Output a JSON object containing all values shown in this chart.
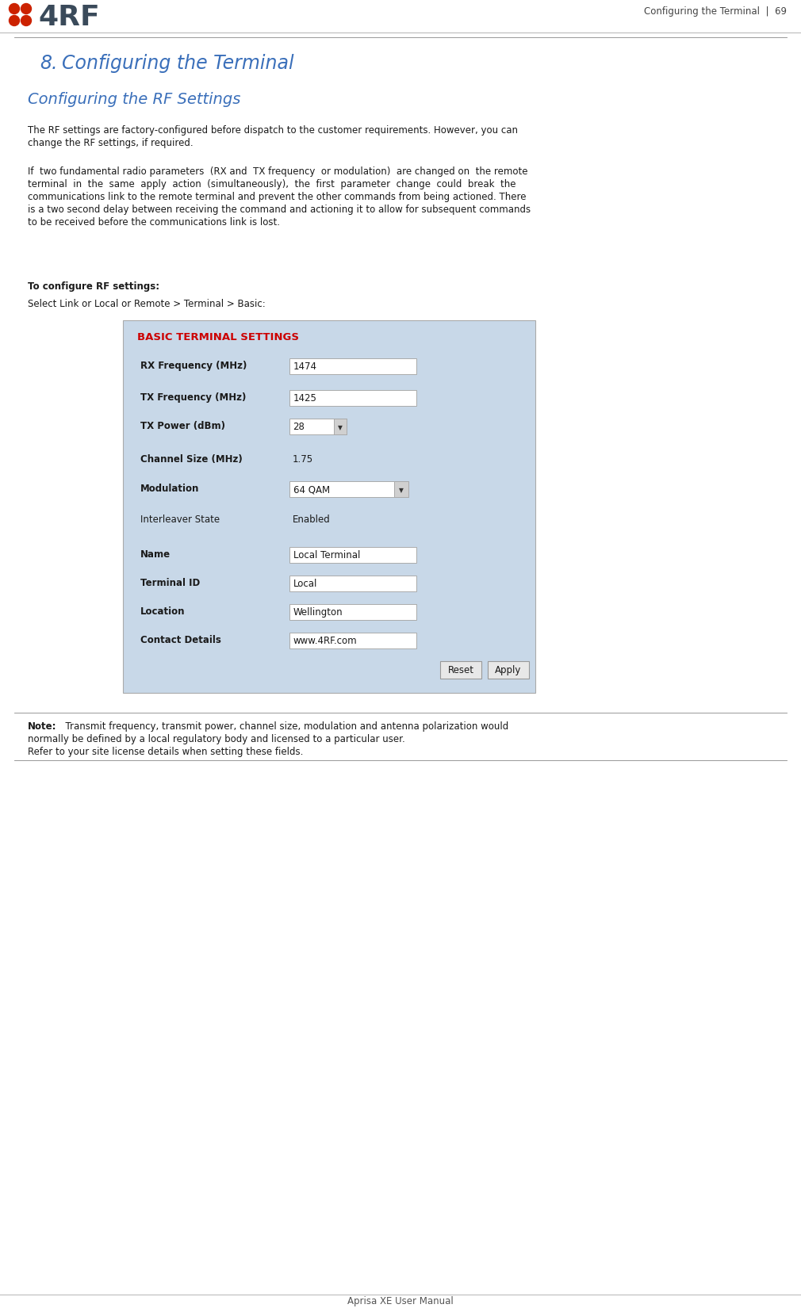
{
  "page_width": 10.1,
  "page_height": 16.56,
  "dpi": 100,
  "bg_color": "#ffffff",
  "header_text": "Configuring the Terminal  |  69",
  "header_font_size": 8.5,
  "section_number": "8.",
  "section_title": "Configuring the Terminal",
  "section_title_color": "#3a6fba",
  "subsection_title": "Configuring the RF Settings",
  "subsection_title_color": "#3a6fba",
  "para1_lines": [
    "The RF settings are factory-configured before dispatch to the customer requirements. However, you can",
    "change the RF settings, if required."
  ],
  "para2_lines": [
    "If  two fundamental radio parameters  (RX and  TX frequency  or modulation)  are changed on  the remote",
    "terminal  in  the  same  apply  action  (simultaneously),  the  first  parameter  change  could  break  the",
    "communications link to the remote terminal and prevent the other commands from being actioned. There",
    "is a two second delay between receiving the command and actioning it to allow for subsequent commands",
    "to be received before the communications link is lost."
  ],
  "instruction_label": "To configure RF settings:",
  "instruction_body": "Select Link or Local or Remote > Terminal > Basic:",
  "panel_bg": "#c8d8e8",
  "panel_title": "BASIC TERMINAL SETTINGS",
  "panel_title_color": "#cc0000",
  "panel_fields": [
    {
      "label": "RX Frequency (MHz)",
      "value": "1474",
      "type": "input",
      "bold_label": true
    },
    {
      "label": "TX Frequency (MHz)",
      "value": "1425",
      "type": "input",
      "bold_label": true
    },
    {
      "label": "TX Power (dBm)",
      "value": "28",
      "type": "dropdown_small",
      "bold_label": true
    },
    {
      "label": "Channel Size (MHz)",
      "value": "1.75",
      "type": "text",
      "bold_label": true
    },
    {
      "label": "Modulation",
      "value": "64 QAM",
      "type": "dropdown_wide",
      "bold_label": true
    },
    {
      "label": "Interleaver State",
      "value": "Enabled",
      "type": "text",
      "bold_label": false
    },
    {
      "label": "Name",
      "value": "Local Terminal",
      "type": "input",
      "bold_label": true
    },
    {
      "label": "Terminal ID",
      "value": "Local",
      "type": "input",
      "bold_label": true
    },
    {
      "label": "Location",
      "value": "Wellington",
      "type": "input",
      "bold_label": true
    },
    {
      "label": "Contact Details",
      "value": "www.4RF.com",
      "type": "input",
      "bold_label": true
    }
  ],
  "note_bold": "Note:",
  "note_line1": "  Transmit frequency, transmit power, channel size, modulation and antenna polarization would",
  "note_line2": "normally be defined by a local regulatory body and licensed to a particular user.",
  "note_line3": "Refer to your site license details when setting these fields.",
  "footer_text": "Aprisa XE User Manual",
  "text_color": "#1a1a1a",
  "body_font_size": 8.5,
  "logo_dot_color": "#cc2200",
  "logo_text_color": "#3a4a5a"
}
